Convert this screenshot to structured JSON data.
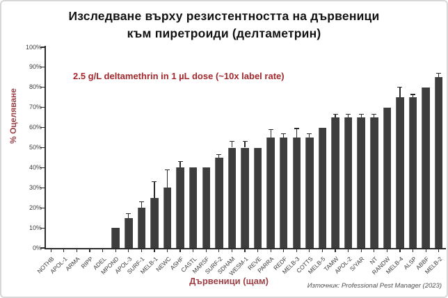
{
  "title": {
    "line1": "Изследване върху резистентността на дървеници",
    "line2": "към пиретроиди (делтаметрин)"
  },
  "chart_data": {
    "type": "bar",
    "title": "Изследване върху резистентността на дървеници към пиретроиди (делтаметрин)",
    "annotation": "2.5 g/L deltamethrin in 1 µL dose (~10x label rate)",
    "xlabel": "Дървеници (щам)",
    "ylabel": "% Оцеляване",
    "ylim": [
      0,
      100
    ],
    "ytick_step": 10,
    "ytick_suffix": "%",
    "grid": false,
    "legend": "none",
    "categories": [
      "NOTHB",
      "APOL-1",
      "ARMA",
      "RIPP",
      "ADEL",
      "MPOND",
      "APOL-3",
      "SURF-1",
      "MELB-1",
      "NEWC",
      "ASHF",
      "CASTL",
      "MARSF",
      "SURF-2",
      "SDHAM",
      "WESM-1",
      "REVE",
      "PARRA",
      "REDF",
      "MELB-3",
      "COTTS",
      "MELB-5",
      "TAMW",
      "APOL-2",
      "S/YAR",
      "NT",
      "RANDW",
      "MELB-4",
      "ALSP",
      "ABBF",
      "MELB-2"
    ],
    "values": [
      0,
      0,
      0,
      0,
      0,
      10,
      15,
      20,
      25,
      30,
      40,
      40,
      40,
      45,
      50,
      50,
      50,
      55,
      55,
      55,
      55,
      60,
      65,
      65,
      65,
      65,
      70,
      75,
      75,
      80,
      85
    ],
    "errors_plus": [
      0,
      0,
      0,
      0,
      0,
      0,
      2,
      3,
      8,
      9,
      3,
      0,
      0,
      1.5,
      3,
      3,
      0,
      4,
      2,
      4.5,
      2,
      0,
      1.5,
      1.5,
      1.5,
      1.5,
      0,
      5,
      1.5,
      0,
      2
    ]
  },
  "source": {
    "text": "Източник: Professional Pest Manager (2023)"
  },
  "colors": {
    "bar": "#3d3d3d",
    "annotation": "#a3282c",
    "axis_title": "#9d4046",
    "tick_label": "#3c3c3c",
    "axis_line": "#2a2a2a",
    "title": "#121212",
    "source": "#4f4f4f",
    "border": "#d7d7d7"
  }
}
